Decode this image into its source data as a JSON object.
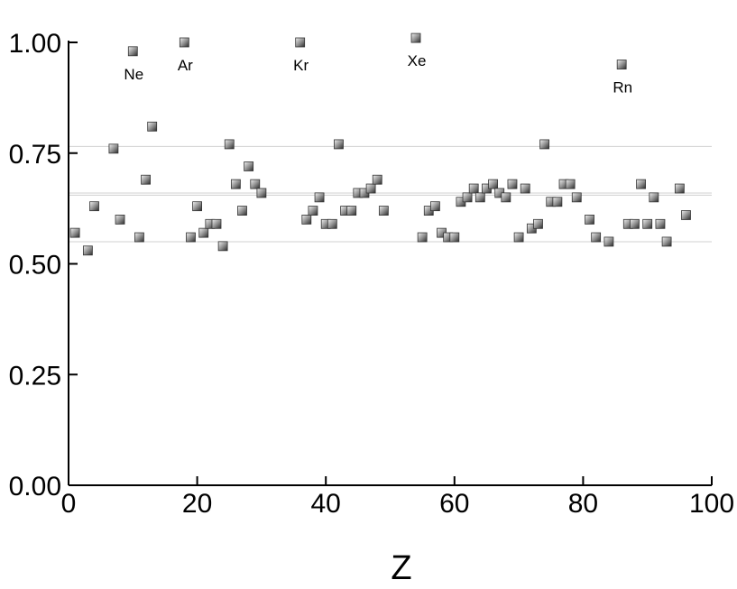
{
  "chart_data": {
    "type": "scatter",
    "title": "",
    "xlabel": "Z",
    "ylabel": "",
    "xlim": [
      0,
      100
    ],
    "ylim": [
      0,
      1
    ],
    "grid": false,
    "xticks": [
      0,
      20,
      40,
      60,
      80,
      100
    ],
    "xtick_labels": [
      "0",
      "20",
      "40",
      "60",
      "80",
      "100"
    ],
    "yticks": [
      0,
      0.25,
      0.5,
      0.75,
      1
    ],
    "ytick_labels": [
      "0.00",
      "0.25",
      "0.50",
      "0.75",
      "1.00"
    ],
    "reference_lines": [
      0.765,
      0.66,
      0.655,
      0.55
    ],
    "marker": {
      "shape": "square",
      "color": "#777777"
    },
    "points": [
      [
        1,
        0.57
      ],
      [
        3,
        0.53
      ],
      [
        4,
        0.63
      ],
      [
        7,
        0.76
      ],
      [
        8,
        0.6
      ],
      [
        10,
        0.98
      ],
      [
        11,
        0.56
      ],
      [
        12,
        0.69
      ],
      [
        13,
        0.81
      ],
      [
        18,
        1.0
      ],
      [
        19,
        0.56
      ],
      [
        20,
        0.63
      ],
      [
        21,
        0.57
      ],
      [
        22,
        0.59
      ],
      [
        23,
        0.59
      ],
      [
        24,
        0.54
      ],
      [
        25,
        0.77
      ],
      [
        26,
        0.68
      ],
      [
        27,
        0.62
      ],
      [
        28,
        0.72
      ],
      [
        29,
        0.68
      ],
      [
        30,
        0.66
      ],
      [
        36,
        1.0
      ],
      [
        37,
        0.6
      ],
      [
        38,
        0.62
      ],
      [
        39,
        0.65
      ],
      [
        40,
        0.59
      ],
      [
        41,
        0.59
      ],
      [
        42,
        0.77
      ],
      [
        43,
        0.62
      ],
      [
        44,
        0.62
      ],
      [
        45,
        0.66
      ],
      [
        46,
        0.66
      ],
      [
        47,
        0.67
      ],
      [
        48,
        0.69
      ],
      [
        49,
        0.62
      ],
      [
        54,
        1.01
      ],
      [
        55,
        0.56
      ],
      [
        56,
        0.62
      ],
      [
        57,
        0.63
      ],
      [
        58,
        0.57
      ],
      [
        59,
        0.56
      ],
      [
        60,
        0.56
      ],
      [
        61,
        0.64
      ],
      [
        62,
        0.65
      ],
      [
        63,
        0.67
      ],
      [
        64,
        0.65
      ],
      [
        65,
        0.67
      ],
      [
        66,
        0.68
      ],
      [
        67,
        0.66
      ],
      [
        68,
        0.65
      ],
      [
        69,
        0.68
      ],
      [
        70,
        0.56
      ],
      [
        71,
        0.67
      ],
      [
        72,
        0.58
      ],
      [
        73,
        0.59
      ],
      [
        74,
        0.77
      ],
      [
        75,
        0.64
      ],
      [
        76,
        0.64
      ],
      [
        77,
        0.68
      ],
      [
        78,
        0.68
      ],
      [
        79,
        0.65
      ],
      [
        81,
        0.6
      ],
      [
        82,
        0.56
      ],
      [
        84,
        0.55
      ],
      [
        86,
        0.95
      ],
      [
        87,
        0.59
      ],
      [
        88,
        0.59
      ],
      [
        89,
        0.68
      ],
      [
        90,
        0.59
      ],
      [
        91,
        0.65
      ],
      [
        92,
        0.59
      ],
      [
        93,
        0.55
      ],
      [
        95,
        0.67
      ],
      [
        96,
        0.61
      ]
    ],
    "annotations": [
      {
        "text": "Ne",
        "x": 10,
        "y": 0.98
      },
      {
        "text": "Ar",
        "x": 18,
        "y": 1.0
      },
      {
        "text": "Kr",
        "x": 36,
        "y": 1.0
      },
      {
        "text": "Xe",
        "x": 54,
        "y": 1.01
      },
      {
        "text": "Rn",
        "x": 86,
        "y": 0.95
      }
    ]
  }
}
